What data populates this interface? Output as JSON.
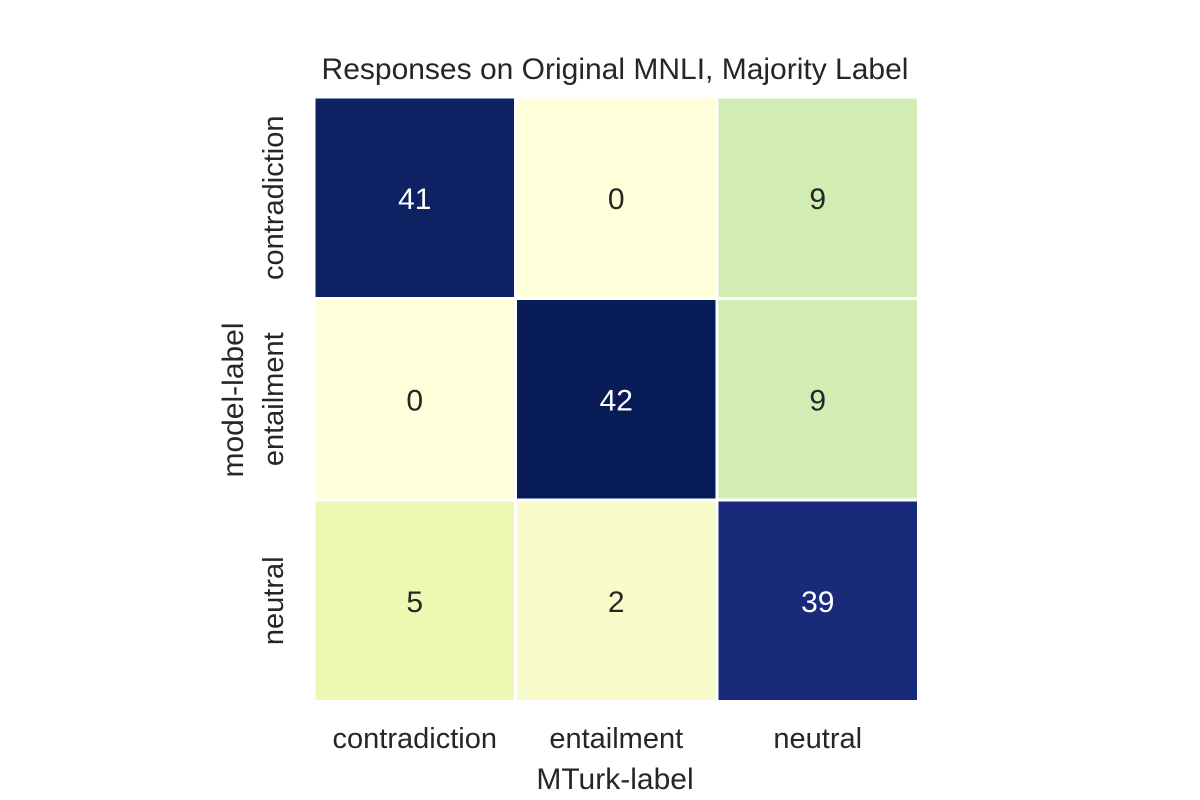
{
  "chart_data": {
    "type": "heatmap",
    "title": "Responses on Original MNLI, Majority Label",
    "xlabel": "MTurk-label",
    "ylabel": "model-label",
    "x_categories": [
      "contradiction",
      "entailment",
      "neutral"
    ],
    "y_categories": [
      "contradiction",
      "entailment",
      "neutral"
    ],
    "values": [
      [
        41,
        0,
        9
      ],
      [
        0,
        42,
        9
      ],
      [
        5,
        2,
        39
      ]
    ],
    "colormap": "YlGnBu",
    "value_range": [
      0,
      42
    ],
    "colorbar": false,
    "annotations": true,
    "colors": {
      "low": "#ffffd9",
      "high": "#081d58",
      "text_dark": "#262626",
      "text_light": "#ffffff",
      "cell_border": "#ffffff"
    }
  }
}
